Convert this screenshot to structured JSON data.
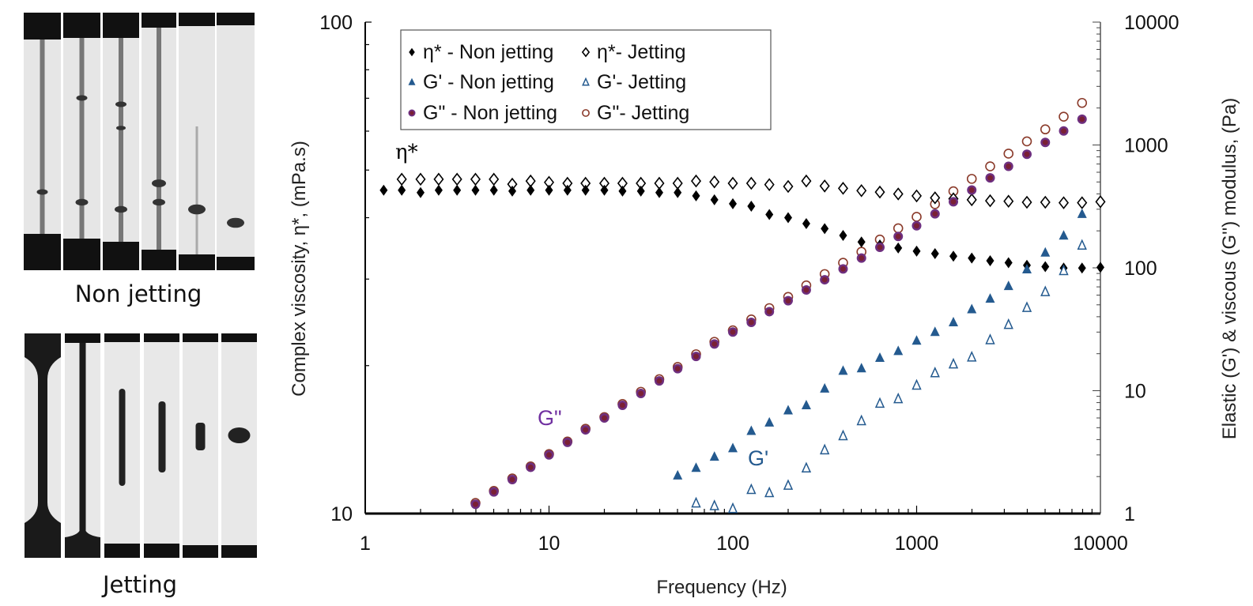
{
  "photos": {
    "non_jetting_caption": "Non jetting",
    "jetting_caption": "Jetting"
  },
  "chart_data": {
    "type": "scatter",
    "xlabel": "Frequency (Hz)",
    "ylabel": "Complex viscosity, η*, (mPa.s)",
    "y2label": "Elastic (G') & viscous (G'') modulus, (Pa)",
    "xscale": "log",
    "yscale": "log",
    "y2scale": "log",
    "xlim": [
      1,
      10000
    ],
    "ylim": [
      10,
      100
    ],
    "y2lim": [
      1,
      10000
    ],
    "xticks": [
      "1",
      "10",
      "100",
      "1000",
      "10000"
    ],
    "yticks": [
      "10",
      "100"
    ],
    "y2ticks": [
      "1",
      "10",
      "100",
      "1000",
      "10000"
    ],
    "grid": false,
    "legend_placement": "top-left",
    "annotations": {
      "eta": "η*",
      "gpp": "G\"",
      "gp": "G'"
    },
    "colors": {
      "eta": "#000000",
      "gp": "#245a8f",
      "gpp_fill": "#6e2f7f",
      "gpp_core": "#7a2035",
      "gpp_jet": "#8b3b2b"
    },
    "series": [
      {
        "name": "η* - Non jetting",
        "axis": "left",
        "marker": "diamond-filled",
        "x": [
          1.26,
          1.58,
          2,
          2.51,
          3.16,
          3.98,
          5.01,
          6.31,
          7.94,
          10,
          12.6,
          15.8,
          20,
          25.1,
          31.6,
          39.8,
          50.1,
          63.1,
          79.4,
          100,
          126,
          158,
          200,
          251,
          316,
          398,
          501,
          631,
          794,
          1000,
          1259,
          1585,
          1995,
          2512,
          3162,
          3981,
          5012,
          6310,
          7943,
          10000
        ],
        "y": [
          45.5,
          45.5,
          45.0,
          45.5,
          45.5,
          45.5,
          45.5,
          45.3,
          45.5,
          45.5,
          45.5,
          45.5,
          45.5,
          45.3,
          45.3,
          45.0,
          45.0,
          44.3,
          43.5,
          42.7,
          42.2,
          40.6,
          40.0,
          38.9,
          38.0,
          36.8,
          35.7,
          35.2,
          34.7,
          34.2,
          33.8,
          33.4,
          33.1,
          32.7,
          32.4,
          32.0,
          31.8,
          31.6,
          31.6,
          31.7
        ]
      },
      {
        "name": "η*- Jetting",
        "axis": "left",
        "marker": "diamond-open",
        "x": [
          1.58,
          2,
          2.51,
          3.16,
          3.98,
          5.01,
          6.31,
          7.94,
          10,
          12.6,
          15.8,
          20,
          25.1,
          31.6,
          39.8,
          50.1,
          63.1,
          79.4,
          100,
          126,
          158,
          200,
          251,
          316,
          398,
          501,
          631,
          794,
          1000,
          1259,
          1585,
          1995,
          2512,
          3162,
          3981,
          5012,
          6310,
          7943,
          10000
        ],
        "y": [
          47.9,
          47.9,
          47.9,
          47.9,
          47.9,
          47.9,
          46.8,
          47.5,
          47.2,
          47.0,
          47.0,
          47.0,
          47.0,
          47.0,
          47.0,
          47.0,
          47.5,
          47.3,
          47.0,
          47.0,
          46.7,
          46.3,
          47.5,
          46.4,
          45.9,
          45.4,
          45.1,
          44.7,
          44.3,
          43.9,
          43.7,
          43.5,
          43.3,
          43.2,
          43.0,
          43.0,
          42.9,
          42.9,
          43.1
        ]
      },
      {
        "name": "G' - Non jetting",
        "axis": "right",
        "marker": "triangle-filled",
        "x": [
          50.1,
          63.1,
          79.4,
          100,
          126,
          158,
          200,
          251,
          316,
          398,
          501,
          631,
          794,
          1000,
          1259,
          1585,
          1995,
          2512,
          3162,
          3981,
          5012,
          6310,
          7943
        ],
        "y": [
          2.04,
          2.35,
          2.9,
          3.4,
          4.7,
          5.5,
          6.9,
          7.6,
          10.4,
          14.5,
          15.2,
          18.5,
          21,
          25.5,
          30,
          36,
          46,
          56,
          71,
          97,
          133,
          183,
          274
        ]
      },
      {
        "name": "G'- Jetting",
        "axis": "right",
        "marker": "triangle-open",
        "x": [
          63.1,
          79.4,
          100,
          126,
          158,
          200,
          251,
          316,
          398,
          501,
          631,
          794,
          1000,
          1259,
          1585,
          1995,
          2512,
          3162,
          3981,
          5012,
          6310,
          7943
        ],
        "y": [
          1.22,
          1.16,
          1.1,
          1.57,
          1.48,
          1.7,
          2.35,
          3.3,
          4.3,
          5.7,
          7.9,
          8.6,
          11.1,
          14,
          16.5,
          18.8,
          26,
          34.6,
          47.6,
          64,
          95,
          153
        ]
      },
      {
        "name": "G\" - Non jetting",
        "axis": "right",
        "marker": "circle-filled",
        "x": [
          3.98,
          5.01,
          6.31,
          7.94,
          10,
          12.6,
          15.8,
          20,
          25.1,
          31.6,
          39.8,
          50.1,
          63.1,
          79.4,
          100,
          126,
          158,
          200,
          251,
          316,
          398,
          501,
          631,
          794,
          1000,
          1259,
          1585,
          1995,
          2512,
          3162,
          3981,
          5012,
          6310,
          7943
        ],
        "y": [
          1.19,
          1.5,
          1.89,
          2.38,
          3.0,
          3.8,
          4.8,
          6.0,
          7.6,
          9.5,
          12.0,
          15.1,
          19.0,
          24.0,
          30,
          36,
          44,
          54,
          66,
          80,
          98,
          120,
          147,
          180,
          220,
          275,
          345,
          430,
          540,
          670,
          840,
          1050,
          1300,
          1620
        ]
      },
      {
        "name": "G\"- Jetting",
        "axis": "right",
        "marker": "circle-open",
        "x": [
          3.98,
          5.01,
          6.31,
          7.94,
          10,
          12.6,
          15.8,
          20,
          25.1,
          31.6,
          39.8,
          50.1,
          63.1,
          79.4,
          100,
          126,
          158,
          200,
          251,
          316,
          398,
          501,
          631,
          794,
          1000,
          1259,
          1585,
          1995,
          2512,
          3162,
          3981,
          5012,
          6310,
          7943
        ],
        "y": [
          1.22,
          1.53,
          1.93,
          2.42,
          3.05,
          3.86,
          4.9,
          6.1,
          7.8,
          9.8,
          12.4,
          15.6,
          19.8,
          25,
          31,
          38,
          47,
          58,
          72,
          89,
          110,
          135,
          170,
          210,
          260,
          330,
          420,
          530,
          670,
          850,
          1070,
          1340,
          1700,
          2200
        ]
      }
    ]
  }
}
